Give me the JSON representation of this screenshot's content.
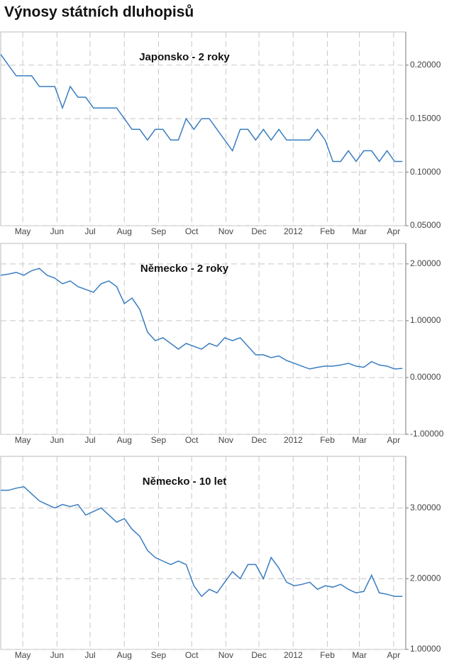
{
  "title": "Výnosy státních dluhopisů",
  "chart_data": [
    {
      "type": "line",
      "title": "Japonsko - 2 roky",
      "x": [
        0,
        7,
        14,
        21,
        28,
        35,
        42,
        49,
        56,
        63,
        70,
        77,
        84,
        91,
        98,
        105,
        112,
        119,
        126,
        133,
        140,
        147,
        154,
        161,
        168,
        175,
        182,
        189,
        196,
        203,
        210,
        217,
        224,
        231,
        238,
        245,
        252,
        259,
        266,
        273,
        280,
        287,
        294,
        301,
        308,
        315,
        322,
        329,
        336,
        343,
        350,
        357,
        364
      ],
      "series": [
        {
          "name": "Japonsko - 2 roky",
          "color": "#3a7dc1",
          "values": [
            0.21,
            0.2,
            0.19,
            0.19,
            0.19,
            0.18,
            0.18,
            0.18,
            0.16,
            0.18,
            0.17,
            0.17,
            0.16,
            0.16,
            0.16,
            0.16,
            0.15,
            0.14,
            0.14,
            0.13,
            0.14,
            0.14,
            0.13,
            0.13,
            0.15,
            0.14,
            0.15,
            0.15,
            0.14,
            0.13,
            0.12,
            0.14,
            0.14,
            0.13,
            0.14,
            0.13,
            0.14,
            0.13,
            0.13,
            0.13,
            0.13,
            0.14,
            0.13,
            0.11,
            0.11,
            0.12,
            0.11,
            0.12,
            0.12,
            0.11,
            0.12,
            0.11,
            0.11
          ]
        }
      ],
      "xlim": [
        0,
        367
      ],
      "xticks": [
        {
          "value": 20,
          "label": "May"
        },
        {
          "value": 51,
          "label": "Jun"
        },
        {
          "value": 81,
          "label": "Jul"
        },
        {
          "value": 112,
          "label": "Aug"
        },
        {
          "value": 143,
          "label": "Sep"
        },
        {
          "value": 173,
          "label": "Oct"
        },
        {
          "value": 204,
          "label": "Nov"
        },
        {
          "value": 234,
          "label": "Dec"
        },
        {
          "value": 265,
          "label": "2012"
        },
        {
          "value": 296,
          "label": "Feb"
        },
        {
          "value": 325,
          "label": "Mar"
        },
        {
          "value": 356,
          "label": "Apr"
        }
      ],
      "ylim": [
        0.05,
        0.231
      ],
      "yticks": [
        {
          "value": 0.05,
          "label": "0.05000"
        },
        {
          "value": 0.1,
          "label": "0.10000"
        },
        {
          "value": 0.15,
          "label": "0.15000"
        },
        {
          "value": 0.2,
          "label": "0.20000"
        }
      ],
      "grid": true
    },
    {
      "type": "line",
      "title": "Německo - 2 roky",
      "x": [
        0,
        7,
        14,
        21,
        28,
        35,
        42,
        49,
        56,
        63,
        70,
        77,
        84,
        91,
        98,
        105,
        112,
        119,
        126,
        133,
        140,
        147,
        154,
        161,
        168,
        175,
        182,
        189,
        196,
        203,
        210,
        217,
        224,
        231,
        238,
        245,
        252,
        259,
        266,
        273,
        280,
        287,
        294,
        301,
        308,
        315,
        322,
        329,
        336,
        343,
        350,
        357,
        364
      ],
      "series": [
        {
          "name": "Německo - 2 roky",
          "color": "#3a7dc1",
          "values": [
            1.8,
            1.82,
            1.85,
            1.8,
            1.88,
            1.92,
            1.8,
            1.75,
            1.65,
            1.7,
            1.6,
            1.55,
            1.5,
            1.65,
            1.7,
            1.6,
            1.3,
            1.4,
            1.2,
            0.8,
            0.65,
            0.7,
            0.6,
            0.5,
            0.6,
            0.55,
            0.5,
            0.6,
            0.55,
            0.7,
            0.65,
            0.7,
            0.55,
            0.4,
            0.4,
            0.35,
            0.38,
            0.3,
            0.25,
            0.2,
            0.15,
            0.18,
            0.2,
            0.2,
            0.22,
            0.25,
            0.2,
            0.18,
            0.28,
            0.22,
            0.2,
            0.15,
            0.16
          ]
        }
      ],
      "xlim": [
        0,
        367
      ],
      "xticks": [
        {
          "value": 20,
          "label": "May"
        },
        {
          "value": 51,
          "label": "Jun"
        },
        {
          "value": 81,
          "label": "Jul"
        },
        {
          "value": 112,
          "label": "Aug"
        },
        {
          "value": 143,
          "label": "Sep"
        },
        {
          "value": 173,
          "label": "Oct"
        },
        {
          "value": 204,
          "label": "Nov"
        },
        {
          "value": 234,
          "label": "Dec"
        },
        {
          "value": 265,
          "label": "2012"
        },
        {
          "value": 296,
          "label": "Feb"
        },
        {
          "value": 325,
          "label": "Mar"
        },
        {
          "value": 356,
          "label": "Apr"
        }
      ],
      "ylim": [
        -1,
        2.36
      ],
      "yticks": [
        {
          "value": -1,
          "label": "-1.00000"
        },
        {
          "value": 0,
          "label": "0.00000"
        },
        {
          "value": 1,
          "label": "1.00000"
        },
        {
          "value": 2,
          "label": "2.00000"
        }
      ],
      "grid": true
    },
    {
      "type": "line",
      "title": "Německo - 10 let",
      "x": [
        0,
        7,
        14,
        21,
        28,
        35,
        42,
        49,
        56,
        63,
        70,
        77,
        84,
        91,
        98,
        105,
        112,
        119,
        126,
        133,
        140,
        147,
        154,
        161,
        168,
        175,
        182,
        189,
        196,
        203,
        210,
        217,
        224,
        231,
        238,
        245,
        252,
        259,
        266,
        273,
        280,
        287,
        294,
        301,
        308,
        315,
        322,
        329,
        336,
        343,
        350,
        357,
        364
      ],
      "series": [
        {
          "name": "Německo - 10 let",
          "color": "#3a7dc1",
          "values": [
            3.25,
            3.25,
            3.28,
            3.3,
            3.2,
            3.1,
            3.05,
            3.0,
            3.05,
            3.02,
            3.05,
            2.9,
            2.95,
            3.0,
            2.9,
            2.8,
            2.85,
            2.7,
            2.6,
            2.4,
            2.3,
            2.25,
            2.2,
            2.25,
            2.2,
            1.9,
            1.75,
            1.85,
            1.8,
            1.95,
            2.1,
            2.0,
            2.2,
            2.2,
            2.0,
            2.3,
            2.15,
            1.95,
            1.9,
            1.92,
            1.95,
            1.85,
            1.9,
            1.88,
            1.92,
            1.85,
            1.8,
            1.82,
            2.05,
            1.8,
            1.78,
            1.75,
            1.75
          ]
        }
      ],
      "xlim": [
        0,
        367
      ],
      "xticks": [
        {
          "value": 20,
          "label": "May"
        },
        {
          "value": 51,
          "label": "Jun"
        },
        {
          "value": 81,
          "label": "Jul"
        },
        {
          "value": 112,
          "label": "Aug"
        },
        {
          "value": 143,
          "label": "Sep"
        },
        {
          "value": 173,
          "label": "Oct"
        },
        {
          "value": 204,
          "label": "Nov"
        },
        {
          "value": 234,
          "label": "Dec"
        },
        {
          "value": 265,
          "label": "2012"
        },
        {
          "value": 296,
          "label": "Feb"
        },
        {
          "value": 325,
          "label": "Mar"
        },
        {
          "value": 356,
          "label": "Apr"
        }
      ],
      "ylim": [
        1,
        3.73
      ],
      "yticks": [
        {
          "value": 1,
          "label": "1.00000"
        },
        {
          "value": 2,
          "label": "2.00000"
        },
        {
          "value": 3,
          "label": "3.00000"
        }
      ],
      "grid": true
    }
  ]
}
